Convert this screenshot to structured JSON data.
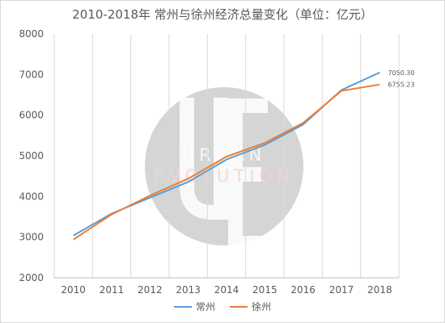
{
  "chart_data": {
    "type": "line",
    "title": "2010-2018年 常州与徐州经济总量变化（单位：亿元）",
    "categories": [
      "2010",
      "2011",
      "2012",
      "2013",
      "2014",
      "2015",
      "2016",
      "2017",
      "2018"
    ],
    "ylim": [
      2000,
      8000
    ],
    "yticks": [
      "2000",
      "3000",
      "4000",
      "5000",
      "6000",
      "7000",
      "8000"
    ],
    "grid": true,
    "legend_position": "bottom",
    "series": [
      {
        "name": "常州",
        "color": "#5b9bd5",
        "values": [
          3040,
          3580,
          3970,
          4360,
          4910,
          5270,
          5770,
          6620,
          7050.3
        ],
        "end_label": "7050.30"
      },
      {
        "name": "徐州",
        "color": "#ed7d31",
        "values": [
          2940,
          3560,
          4020,
          4440,
          4980,
          5320,
          5810,
          6600,
          6755.23
        ],
        "end_label": "6755.23"
      }
    ],
    "watermark_text": [
      "URBAN",
      "EVOLUTION"
    ]
  }
}
